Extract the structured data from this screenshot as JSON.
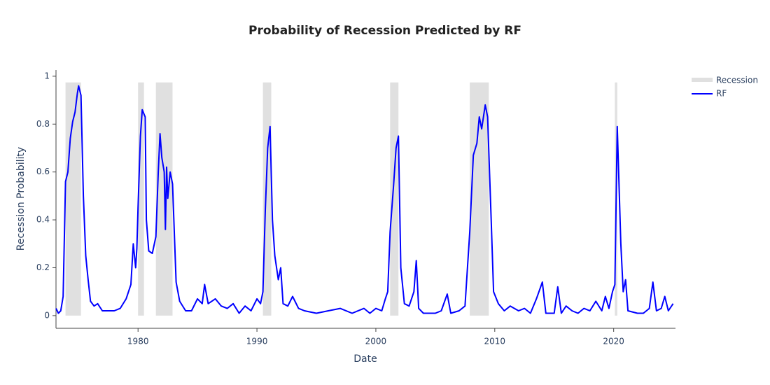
{
  "chart_data": {
    "type": "line",
    "title": "Probability of Recession Predicted by RF",
    "x_label": "Date",
    "y_label": "Recession Probability",
    "xlim": [
      1973.1,
      2025.2
    ],
    "ylim": [
      -0.053,
      1.026
    ],
    "xticks": [
      1980,
      1990,
      2000,
      2010,
      2020
    ],
    "yticks": [
      0,
      0.2,
      0.4,
      0.6,
      0.8,
      1
    ],
    "grid": false,
    "legend_position": "top-right",
    "recession": {
      "name": "Recession",
      "color": "#e0e0e0",
      "level": 0.974,
      "periods": [
        [
          1973.9,
          1975.2
        ],
        [
          1980.0,
          1980.5
        ],
        [
          1981.5,
          1982.9
        ],
        [
          1990.5,
          1991.2
        ],
        [
          2001.2,
          2001.9
        ],
        [
          2007.9,
          2009.5
        ],
        [
          2020.1,
          2020.3
        ]
      ]
    },
    "series": [
      {
        "name": "RF",
        "color": "#0000ff",
        "x": [
          1973.1,
          1973.3,
          1973.5,
          1973.7,
          1973.9,
          1974.1,
          1974.3,
          1974.5,
          1974.7,
          1974.9,
          1975.0,
          1975.2,
          1975.4,
          1975.6,
          1975.8,
          1976.0,
          1976.3,
          1976.6,
          1977.0,
          1977.5,
          1978.0,
          1978.5,
          1979.0,
          1979.4,
          1979.6,
          1979.8,
          1979.9,
          1980.0,
          1980.2,
          1980.35,
          1980.6,
          1980.7,
          1980.9,
          1981.2,
          1981.5,
          1981.7,
          1981.85,
          1982.0,
          1982.2,
          1982.3,
          1982.4,
          1982.5,
          1982.7,
          1982.9,
          1983.2,
          1983.5,
          1984.0,
          1984.5,
          1985.0,
          1985.4,
          1985.6,
          1985.9,
          1986.5,
          1987.0,
          1987.5,
          1988.0,
          1988.5,
          1989.0,
          1989.5,
          1990.0,
          1990.3,
          1990.5,
          1990.7,
          1990.9,
          1991.1,
          1991.3,
          1991.5,
          1991.8,
          1992.0,
          1992.2,
          1992.6,
          1993.0,
          1993.5,
          1994.0,
          1995.0,
          1996.0,
          1997.0,
          1998.0,
          1999.0,
          1999.5,
          2000.0,
          2000.5,
          2000.8,
          2001.0,
          2001.2,
          2001.5,
          2001.7,
          2001.9,
          2002.1,
          2002.4,
          2002.8,
          2003.2,
          2003.4,
          2003.6,
          2004.0,
          2005.0,
          2005.5,
          2006.0,
          2006.3,
          2007.0,
          2007.5,
          2007.9,
          2008.2,
          2008.5,
          2008.7,
          2008.9,
          2009.2,
          2009.4,
          2009.7,
          2009.9,
          2010.3,
          2010.8,
          2011.3,
          2012.0,
          2012.5,
          2013.0,
          2013.5,
          2014.0,
          2014.3,
          2015.0,
          2015.3,
          2015.6,
          2016.0,
          2016.5,
          2017.0,
          2017.5,
          2018.0,
          2018.5,
          2019.0,
          2019.3,
          2019.6,
          2019.9,
          2020.1,
          2020.3,
          2020.45,
          2020.6,
          2020.8,
          2021.0,
          2021.2,
          2022.0,
          2022.5,
          2023.0,
          2023.3,
          2023.6,
          2024.0,
          2024.3,
          2024.6,
          2025.0
        ],
        "values": [
          0.03,
          0.01,
          0.02,
          0.08,
          0.56,
          0.6,
          0.74,
          0.81,
          0.85,
          0.93,
          0.96,
          0.92,
          0.5,
          0.25,
          0.15,
          0.06,
          0.04,
          0.05,
          0.02,
          0.02,
          0.02,
          0.03,
          0.07,
          0.13,
          0.3,
          0.2,
          0.28,
          0.45,
          0.75,
          0.86,
          0.83,
          0.4,
          0.27,
          0.26,
          0.33,
          0.6,
          0.76,
          0.66,
          0.6,
          0.36,
          0.62,
          0.49,
          0.6,
          0.55,
          0.14,
          0.06,
          0.02,
          0.02,
          0.07,
          0.05,
          0.13,
          0.05,
          0.07,
          0.04,
          0.03,
          0.05,
          0.01,
          0.04,
          0.02,
          0.07,
          0.05,
          0.1,
          0.44,
          0.7,
          0.79,
          0.4,
          0.25,
          0.15,
          0.2,
          0.05,
          0.04,
          0.08,
          0.03,
          0.02,
          0.01,
          0.02,
          0.03,
          0.01,
          0.03,
          0.01,
          0.03,
          0.02,
          0.07,
          0.1,
          0.35,
          0.55,
          0.7,
          0.75,
          0.2,
          0.05,
          0.04,
          0.1,
          0.23,
          0.03,
          0.01,
          0.01,
          0.02,
          0.09,
          0.01,
          0.02,
          0.04,
          0.35,
          0.67,
          0.72,
          0.83,
          0.78,
          0.88,
          0.83,
          0.4,
          0.1,
          0.05,
          0.02,
          0.04,
          0.02,
          0.03,
          0.01,
          0.07,
          0.14,
          0.01,
          0.01,
          0.12,
          0.01,
          0.04,
          0.02,
          0.01,
          0.03,
          0.02,
          0.06,
          0.02,
          0.08,
          0.03,
          0.1,
          0.13,
          0.79,
          0.55,
          0.3,
          0.1,
          0.15,
          0.02,
          0.01,
          0.01,
          0.03,
          0.14,
          0.02,
          0.03,
          0.08,
          0.02,
          0.05
        ]
      }
    ]
  }
}
